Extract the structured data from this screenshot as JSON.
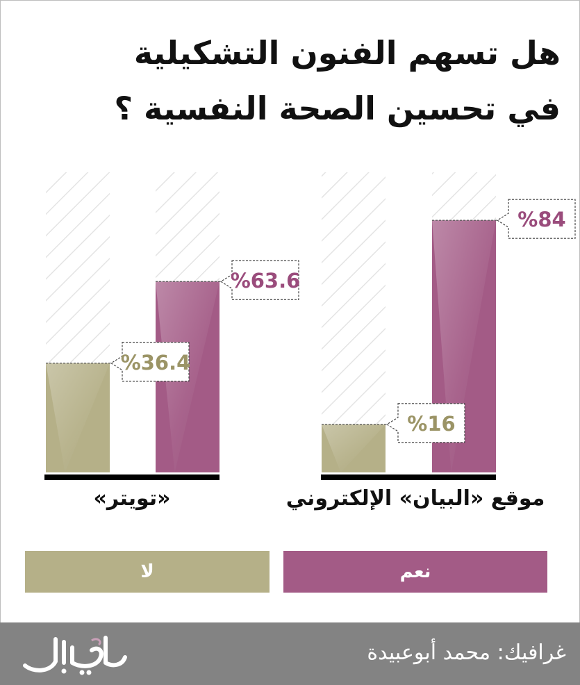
{
  "title_line1": "هل تسهم الفنون التشكيلية",
  "title_line2": "في تحسين الصحة النفسية ؟",
  "chart_data": [
    {
      "type": "bar",
      "group": "موقع «البيان» الإلكتروني",
      "categories": [
        "لا",
        "نعم"
      ],
      "values": [
        16,
        84
      ],
      "labels": [
        "%16",
        "%84"
      ],
      "ylim": [
        0,
        100
      ]
    },
    {
      "type": "bar",
      "group": "«تويتر»",
      "categories": [
        "لا",
        "نعم"
      ],
      "values": [
        36.4,
        63.6
      ],
      "labels": [
        "%36.4",
        "%63.6"
      ],
      "ylim": [
        0,
        100
      ]
    }
  ],
  "legend": {
    "yes": "نعم",
    "no": "لا"
  },
  "colors": {
    "yes": "#a35b86",
    "no": "#b5b088",
    "hatch": "#e4e4e4",
    "footer": "#838383"
  },
  "footer": {
    "credit": "غرافيك: محمد أبوعبيدة",
    "logo_text": "البيان"
  }
}
